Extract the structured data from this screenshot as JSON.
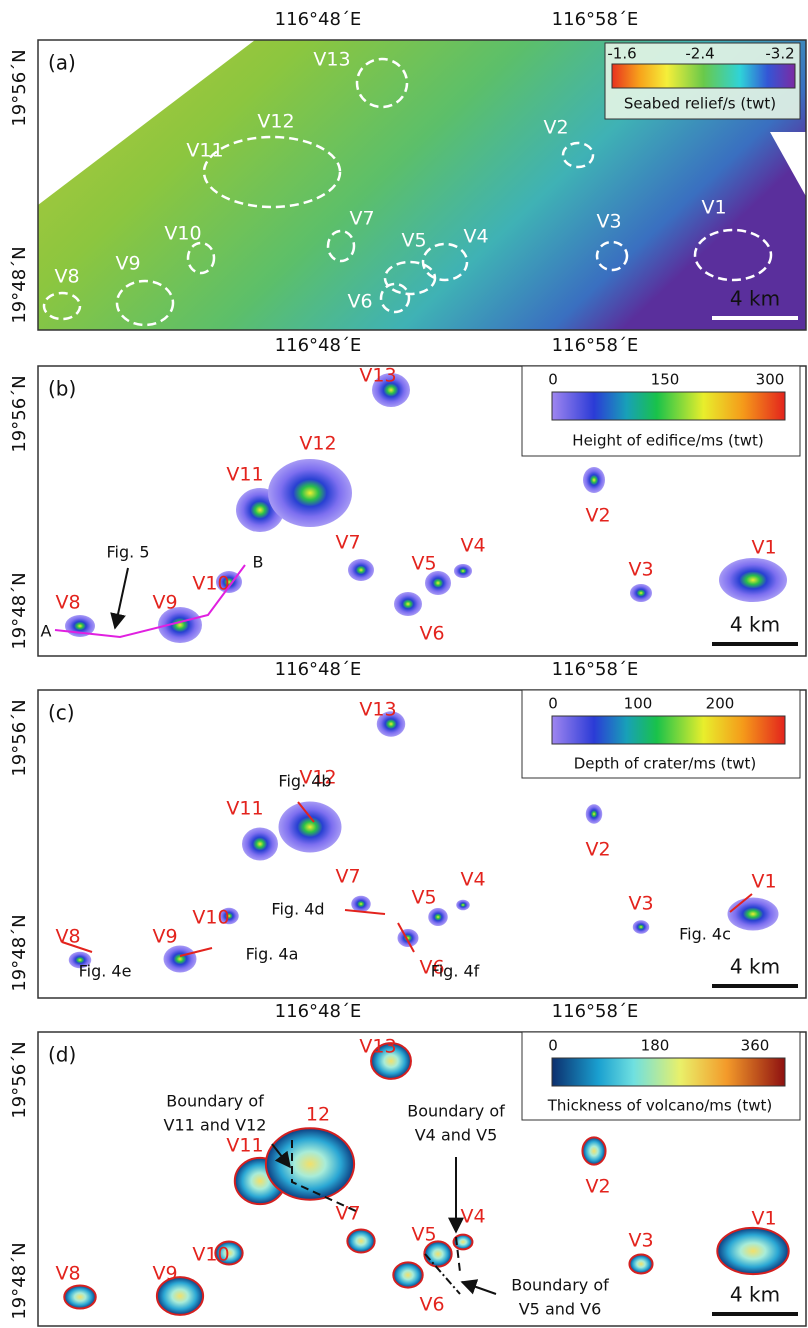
{
  "figure": {
    "panels": [
      {
        "label": "(a)",
        "lon_labels": [
          "116°48´E",
          "116°58´E"
        ],
        "lat_labels": [
          "19°56´N",
          "19°48´N"
        ],
        "volcano_labels": [
          "V1",
          "V2",
          "V3",
          "V4",
          "V5",
          "V6",
          "V7",
          "V8",
          "V9",
          "V10",
          "V11",
          "V12",
          "V13"
        ],
        "colorbar": {
          "ticks": [
            "-1.6",
            "-2.4",
            "-3.2"
          ],
          "title": "Seabed relief/s (twt)"
        },
        "scale_bar": "4 km",
        "annotations": []
      },
      {
        "label": "(b)",
        "lon_labels": [
          "116°48´E",
          "116°58´E"
        ],
        "lat_labels": [
          "19°56´N",
          "19°48´N"
        ],
        "volcano_labels": [
          "V1",
          "V2",
          "V3",
          "V4",
          "V5",
          "V6",
          "V7",
          "V8",
          "V9",
          "V10",
          "V11",
          "V12",
          "V13"
        ],
        "colorbar": {
          "ticks": [
            "0",
            "150",
            "300"
          ],
          "title": "Height of edifice/ms (twt)"
        },
        "scale_bar": "4 km",
        "annotations": [
          "Fig. 5",
          "A",
          "B"
        ]
      },
      {
        "label": "(c)",
        "lon_labels": [
          "116°48´E",
          "116°58´E"
        ],
        "lat_labels": [
          "19°56´N",
          "19°48´N"
        ],
        "volcano_labels": [
          "V1",
          "V2",
          "V3",
          "V4",
          "V5",
          "V6",
          "V7",
          "V8",
          "V9",
          "V10",
          "V11",
          "V12",
          "V13"
        ],
        "colorbar": {
          "ticks": [
            "0",
            "100",
            "200"
          ],
          "title": "Depth of crater/ms (twt)"
        },
        "scale_bar": "4 km",
        "annotations": [
          "Fig. 4a",
          "Fig. 4b",
          "Fig. 4c",
          "Fig. 4d",
          "Fig. 4e",
          "Fig. 4f"
        ]
      },
      {
        "label": "(d)",
        "lon_labels": [
          "116°48´E",
          "116°58´E"
        ],
        "lat_labels": [
          "19°56´N",
          "19°48´N"
        ],
        "volcano_labels": [
          "V1",
          "V2",
          "V3",
          "V4",
          "V5",
          "V6",
          "V7",
          "V8",
          "V9",
          "V10",
          "V11",
          "12",
          "V13"
        ],
        "colorbar": {
          "ticks": [
            "0",
            "180",
            "360"
          ],
          "title": "Thickness of volcano/ms (twt)"
        },
        "scale_bar": "4 km",
        "annotations": [
          [
            "Boundary of",
            "V11 and V12"
          ],
          [
            "Boundary of",
            "V4 and V5"
          ],
          [
            "Boundary of",
            "V5 and V6"
          ]
        ]
      }
    ]
  }
}
